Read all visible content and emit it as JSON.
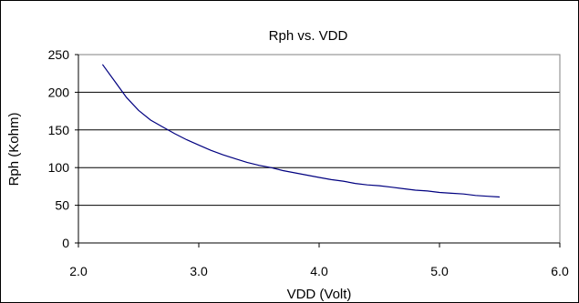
{
  "chart_data": {
    "type": "line",
    "title": "Rph vs. VDD",
    "xlabel": "VDD (Volt)",
    "ylabel": "Rph (Kohm)",
    "xlim": [
      2.0,
      6.0
    ],
    "ylim": [
      0,
      250
    ],
    "xticks": [
      "2.0",
      "3.0",
      "4.0",
      "5.0",
      "6.0"
    ],
    "yticks": [
      "0",
      "50",
      "100",
      "150",
      "200",
      "250"
    ],
    "grid": "horizontal",
    "legend": "none",
    "series": [
      {
        "color": "#000080",
        "x": [
          2.2,
          2.3,
          2.4,
          2.5,
          2.6,
          2.7,
          2.8,
          2.9,
          3.0,
          3.1,
          3.2,
          3.3,
          3.4,
          3.5,
          3.6,
          3.7,
          3.8,
          3.9,
          4.0,
          4.1,
          4.2,
          4.3,
          4.4,
          4.5,
          4.6,
          4.7,
          4.8,
          4.9,
          5.0,
          5.1,
          5.2,
          5.3,
          5.4,
          5.5
        ],
        "y": [
          237,
          215,
          193,
          176,
          163,
          154,
          145,
          137,
          130,
          123,
          117,
          112,
          107,
          103,
          100,
          96,
          93,
          90,
          87,
          84,
          82,
          79,
          77,
          76,
          74,
          72,
          70,
          69,
          67,
          66,
          65,
          63,
          62,
          61
        ]
      }
    ]
  }
}
